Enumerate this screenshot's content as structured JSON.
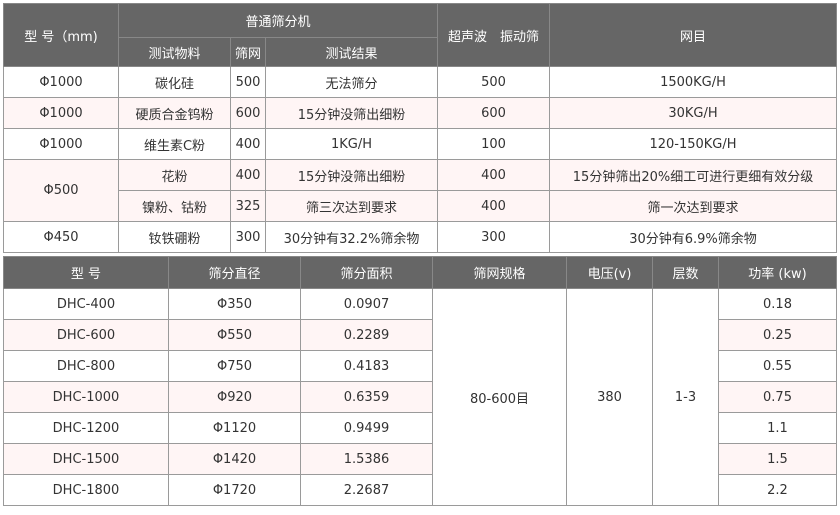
{
  "table1": {
    "headers": {
      "model": "型 号（mm)",
      "normal_sieve": "普通筛分机",
      "material": "测试物料",
      "mesh": "筛网",
      "result": "测试结果",
      "ultrasonic": "超声波　振动筛",
      "mesh_count": "网目"
    },
    "rows": [
      {
        "model": "Φ1000",
        "material": "碳化硅",
        "mesh": "500",
        "result": "无法筛分",
        "ultra": "500",
        "out": "1500KG/H"
      },
      {
        "model": "Φ1000",
        "material": "硬质合金钨粉",
        "mesh": "600",
        "result": "15分钟没筛出细粉",
        "ultra": "600",
        "out": "30KG/H"
      },
      {
        "model": "Φ1000",
        "material": "维生素C粉",
        "mesh": "400",
        "result": "1KG/H",
        "ultra": "100",
        "out": "120-150KG/H"
      },
      {
        "model": "Φ500",
        "material": "花粉",
        "mesh": "400",
        "result": "15分钟没筛出细粉",
        "ultra": "400",
        "out": "15分钟筛出20%细工可进行更细有效分级"
      },
      {
        "material": "镍粉、钴粉",
        "mesh": "325",
        "result": "筛三次达到要求",
        "ultra": "400",
        "out": "筛一次达到要求"
      },
      {
        "model": "Φ450",
        "material": "钕铁硼粉",
        "mesh": "300",
        "result": "30分钟有32.2%筛余物",
        "ultra": "300",
        "out": "30分钟有6.9%筛余物"
      }
    ]
  },
  "table2": {
    "headers": [
      "型 号",
      "筛分直径",
      "筛分面积",
      "筛网规格",
      "电压(v)",
      "层数",
      "功率 (kw)"
    ],
    "shared": {
      "mesh_spec": "80-600目",
      "voltage": "380",
      "layers": "1-3"
    },
    "rows": [
      {
        "model": "DHC-400",
        "dia": "Φ350",
        "area": "0.0907",
        "power": "0.18"
      },
      {
        "model": "DHC-600",
        "dia": "Φ550",
        "area": "0.2289",
        "power": "0.25"
      },
      {
        "model": "DHC-800",
        "dia": "Φ750",
        "area": "0.4183",
        "power": "0.55"
      },
      {
        "model": "DHC-1000",
        "dia": "Φ920",
        "area": "0.6359",
        "power": "0.75"
      },
      {
        "model": "DHC-1200",
        "dia": "Φ1120",
        "area": "0.9499",
        "power": "1.1"
      },
      {
        "model": "DHC-1500",
        "dia": "Φ1420",
        "area": "1.5386",
        "power": "1.5"
      },
      {
        "model": "DHC-1800",
        "dia": "Φ1720",
        "area": "2.2687",
        "power": "2.2"
      }
    ]
  },
  "colors": {
    "header_bg": "#666666",
    "alt_row": "#fff5f5",
    "border": "#9a9a9a"
  }
}
